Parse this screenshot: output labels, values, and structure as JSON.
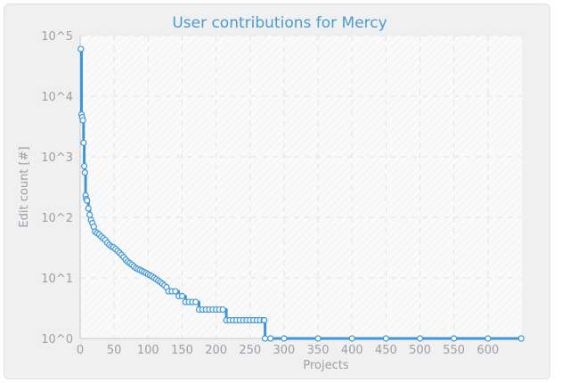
{
  "chart_data": {
    "type": "line",
    "title": "User contributions for Mercy",
    "xlabel": "Projects",
    "ylabel": "Edit count [#]",
    "xlim": [
      0,
      650
    ],
    "ylim": [
      1,
      100000
    ],
    "yscale": "log",
    "x_ticks": [
      "0",
      "50",
      "100",
      "150",
      "200",
      "250",
      "300",
      "350",
      "400",
      "450",
      "500",
      "550",
      "600"
    ],
    "y_ticks": [
      "10^0",
      "10^1",
      "10^2",
      "10^3",
      "10^4",
      "10^5"
    ],
    "grid": true,
    "colors": {
      "line": "#3d96dc",
      "marker_fill": "#ffffff",
      "title": "#4a9ad4",
      "text": "#9aa0a6",
      "grid": "#e3e3e3"
    },
    "series": [
      {
        "x": [
          1,
          2,
          3,
          4,
          5,
          6,
          7,
          8,
          9,
          10,
          12,
          14,
          16,
          18,
          20,
          22,
          25,
          28,
          31,
          34,
          37,
          40,
          43,
          46,
          49,
          52,
          55,
          58,
          61,
          64,
          67,
          70,
          73,
          76,
          79,
          82,
          85,
          88,
          91,
          94,
          97,
          100,
          103,
          106,
          109,
          112,
          115,
          118,
          121,
          124,
          127,
          130,
          135,
          140,
          145,
          150,
          155,
          160,
          165,
          170,
          175,
          180,
          185,
          190,
          195,
          200,
          205,
          210,
          215,
          220,
          225,
          230,
          235,
          240,
          245,
          250,
          255,
          260,
          265,
          270,
          271,
          272,
          280,
          300,
          350,
          400,
          450,
          500,
          550,
          600,
          649
        ],
        "y": [
          60000,
          5000,
          4500,
          4000,
          1700,
          700,
          550,
          230,
          200,
          190,
          140,
          110,
          90,
          80,
          70,
          58,
          55,
          52,
          48,
          45,
          42,
          38,
          35,
          33,
          32,
          30,
          28,
          26,
          24,
          22,
          20,
          18.5,
          17.5,
          16.5,
          15.5,
          14.5,
          14,
          13.5,
          13,
          12.5,
          12,
          11.5,
          11,
          10.5,
          10,
          9.5,
          9,
          8.5,
          8,
          7.5,
          7,
          6,
          6,
          6,
          5,
          5,
          4,
          4,
          4,
          4,
          3,
          3,
          3,
          3,
          3,
          3,
          3,
          3,
          2,
          2,
          2,
          2,
          2,
          2,
          2,
          2,
          2,
          2,
          2,
          2,
          2,
          1,
          1,
          1,
          1,
          1,
          1,
          1,
          1,
          1,
          1
        ]
      }
    ]
  }
}
